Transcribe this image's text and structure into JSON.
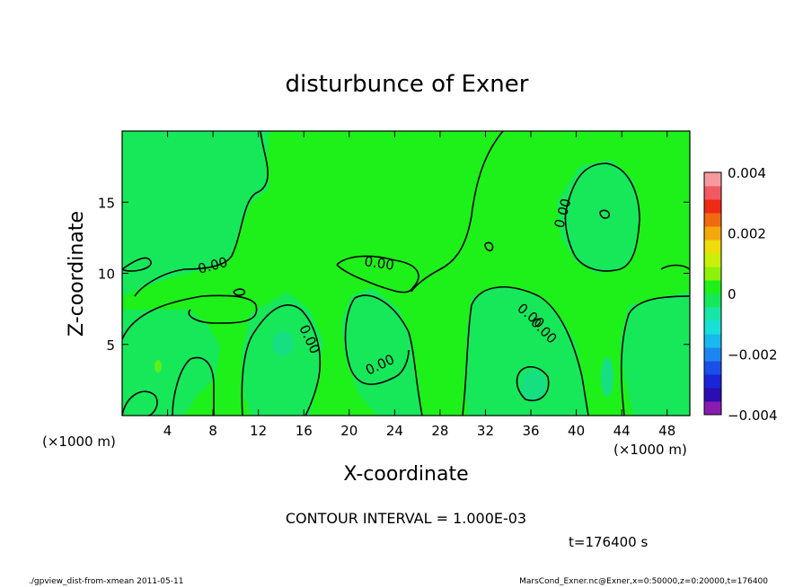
{
  "chart_data": {
    "type": "heatmap",
    "title": "disturbunce of Exner",
    "xlabel": "X-coordinate",
    "ylabel": "Z-coordinate",
    "x_unit_left": "(×1000 m)",
    "x_unit_right": "(×1000 m)",
    "xlim": [
      0,
      50
    ],
    "ylim": [
      0,
      20
    ],
    "x_ticks": [
      4,
      8,
      12,
      16,
      20,
      24,
      28,
      32,
      36,
      40,
      44,
      48
    ],
    "y_ticks": [
      5,
      10,
      15
    ],
    "contour_interval_text": "CONTOUR INTERVAL = 1.000E-03",
    "time_text": "t=176400 s",
    "contour_labels": [
      "0.00",
      "0.00",
      "0.00",
      "0.00",
      "0.00",
      "0.00",
      "0.00"
    ],
    "colorbar": {
      "min": -0.004,
      "max": 0.004,
      "tick_labels": [
        "0.004",
        "0.002",
        "0",
        "−0.002",
        "−0.004"
      ],
      "tick_values": [
        0.004,
        0.002,
        0,
        -0.002,
        -0.004
      ],
      "colors": [
        "#8a1bb0",
        "#2a0eb0",
        "#1a24d8",
        "#1a4fe8",
        "#1c86f0",
        "#17b9ee",
        "#18e0d8",
        "#18e6a8",
        "#17e85a",
        "#1ef01a",
        "#8ff00c",
        "#c8f00a",
        "#f0dc0c",
        "#f4a80c",
        "#f06a10",
        "#f02a14",
        "#f05a60",
        "#f69aa0"
      ]
    },
    "colors": {
      "positive_region": "#1ef01a",
      "near_zero_positive": "#5cef18",
      "negative_region": "#17e85a"
    }
  },
  "footer": {
    "left": "./gpview_dist-from-xmean  2011-05-11",
    "right": "MarsCond_Exner.nc@Exner,x=0:50000,z=0:20000,t=176400"
  }
}
